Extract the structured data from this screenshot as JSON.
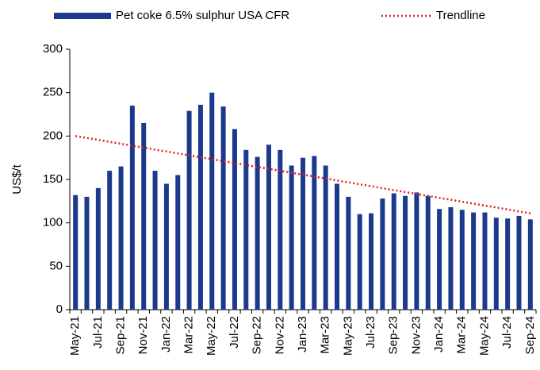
{
  "chart_data": {
    "type": "bar",
    "y_label": "US$/t",
    "categories": [
      "May-21",
      null,
      "Jul-21",
      null,
      "Sep-21",
      null,
      "Nov-21",
      null,
      "Jan-22",
      null,
      "Mar-22",
      null,
      "May-22",
      null,
      "Jul-22",
      null,
      "Sep-22",
      null,
      "Nov-22",
      null,
      "Jan-23",
      null,
      "Mar-23",
      null,
      "May-23",
      null,
      "Jul-23",
      null,
      "Sep-23",
      null,
      "Nov-23",
      null,
      "Jan-24",
      null,
      "Mar-24",
      null,
      "May-24",
      null,
      "Jul-24",
      null,
      "Sep-24"
    ],
    "series": [
      {
        "name": "Pet coke 6.5% sulphur USA CFR",
        "color": "#1c3a8c",
        "values": [
          132,
          130,
          140,
          160,
          165,
          235,
          215,
          160,
          145,
          155,
          229,
          236,
          250,
          234,
          208,
          184,
          176,
          190,
          184,
          166,
          175,
          177,
          166,
          145,
          130,
          110,
          111,
          128,
          134,
          131,
          135,
          131,
          116,
          118,
          115,
          112,
          112,
          106,
          105,
          108,
          104
        ]
      },
      {
        "name": "Trendline",
        "color": "#e0201b",
        "style": "dotted",
        "values": [
          200,
          197.8,
          195.6,
          193.3,
          191.1,
          188.9,
          186.7,
          184.4,
          182.2,
          180,
          177.8,
          175.5,
          173.3,
          171.1,
          168.9,
          166.6,
          164.4,
          162.2,
          160,
          157.7,
          155.5,
          153.3,
          151.1,
          148.8,
          146.6,
          144.4,
          142.2,
          139.9,
          137.7,
          135.5,
          133.3,
          131,
          128.8,
          126.6,
          124.4,
          122.1,
          119.9,
          117.7,
          115.5,
          113.2,
          111
        ]
      }
    ],
    "ylim": [
      0,
      300
    ],
    "yticks": [
      0,
      50,
      100,
      150,
      200,
      250,
      300
    ],
    "grid": false
  }
}
